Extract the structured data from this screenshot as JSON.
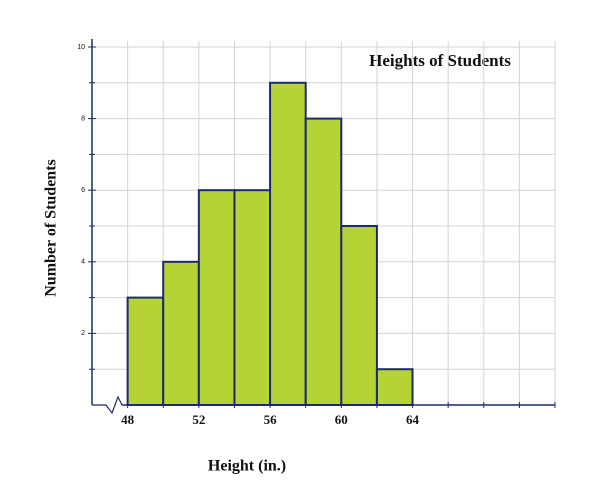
{
  "chart_data": {
    "type": "histogram",
    "title": "Heights of Students",
    "xlabel": "Height (in.)",
    "ylabel": "Number of Students",
    "bins": [
      48,
      50,
      52,
      54,
      56,
      58,
      60,
      62,
      64
    ],
    "values": [
      3,
      4,
      6,
      6,
      9,
      8,
      5,
      1
    ],
    "color": "#b5d334",
    "edge_color": "#1c2b6e",
    "xlim": [
      46,
      72
    ],
    "xticks": [
      48,
      52,
      56,
      60,
      64
    ],
    "x_minor_ticks": [
      46,
      50,
      54,
      58,
      62,
      66,
      68,
      70,
      72
    ],
    "ylim": [
      0,
      10
    ],
    "yticks": [
      2,
      4,
      6,
      8,
      10
    ],
    "y_minor_ticks": [
      1,
      3,
      5,
      7,
      9
    ],
    "grid": true
  }
}
